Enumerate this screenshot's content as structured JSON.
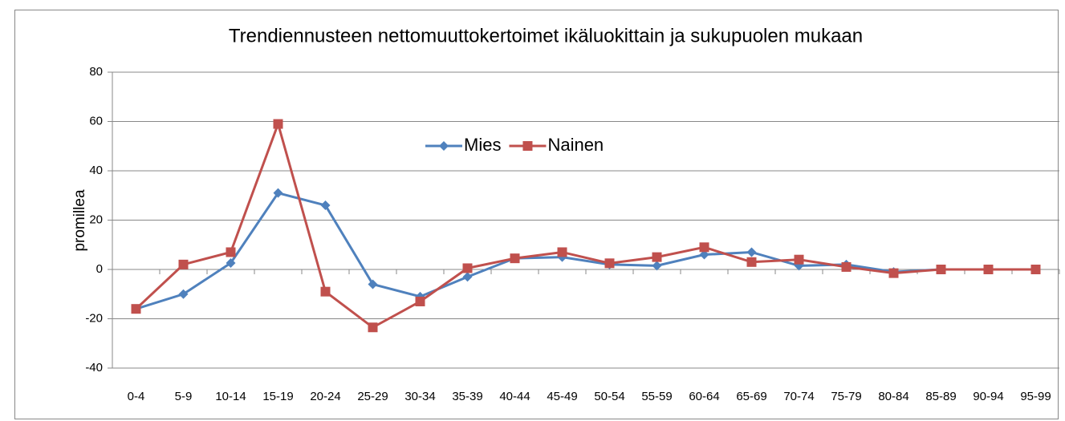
{
  "chart_data": {
    "type": "line",
    "title": "Trendiennusteen nettomuuttokertoimet ikäluokittain ja sukupuolen mukaan",
    "y_label": "promillea",
    "categories": [
      "0-4",
      "5-9",
      "10-14",
      "15-19",
      "20-24",
      "25-29",
      "30-34",
      "35-39",
      "40-44",
      "45-49",
      "50-54",
      "55-59",
      "60-64",
      "65-69",
      "70-74",
      "75-79",
      "80-84",
      "85-89",
      "90-94",
      "95-99"
    ],
    "series": [
      {
        "name": "Mies",
        "color": "#4f81bd",
        "marker": "diamond",
        "values": [
          -16,
          -10,
          2.6,
          31,
          26,
          -6,
          -11,
          -3,
          4.5,
          5,
          2,
          1.5,
          6,
          7,
          1.5,
          2,
          -1,
          0,
          0,
          0
        ]
      },
      {
        "name": "Nainen",
        "color": "#c0504d",
        "marker": "square",
        "values": [
          -16,
          2,
          7,
          59,
          -9,
          -23.5,
          -13,
          0.5,
          4.5,
          7,
          2.5,
          5,
          9,
          3,
          4,
          1,
          -1.5,
          0,
          0,
          0
        ]
      }
    ],
    "ylim": [
      -40,
      80
    ],
    "yticks": [
      -40,
      -20,
      0,
      20,
      40,
      60,
      80
    ],
    "grid": true,
    "legend": "top"
  }
}
